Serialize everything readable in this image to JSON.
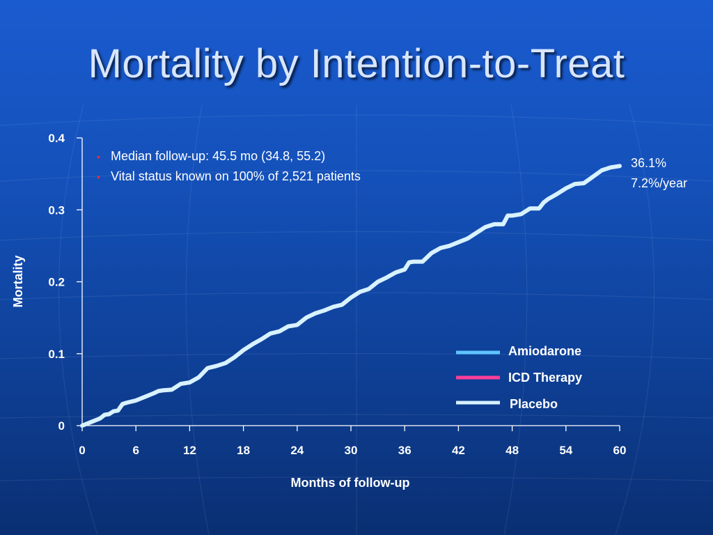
{
  "title": "Mortality by Intention-to-Treat",
  "colors": {
    "amiodarone": "#5ec4ff",
    "icd_therapy": "#ff3d9a",
    "placebo": "#d8f2ff"
  },
  "chart_data": {
    "type": "line",
    "xlabel": "Months of follow-up",
    "ylabel": "Mortality",
    "xlim": [
      0,
      60
    ],
    "ylim": [
      0,
      0.4
    ],
    "x_ticks": [
      "0",
      "6",
      "12",
      "18",
      "24",
      "30",
      "36",
      "42",
      "48",
      "54",
      "60"
    ],
    "y_ticks": [
      "0",
      "0.1",
      "0.2",
      "0.3",
      "0.4"
    ],
    "grid": false,
    "legend_position": "bottom-right",
    "legend": [
      "Amiodarone",
      "ICD Therapy",
      "Placebo"
    ],
    "notes": [
      "Median follow-up:  45.5 mo (34.8, 55.2)",
      "Vital status known on 100% of 2,521 patients"
    ],
    "end_labels": [
      "36.1%",
      "7.2%/year"
    ],
    "series": [
      {
        "name": "Placebo",
        "x": [
          0,
          1,
          2,
          2.5,
          3,
          3.5,
          4,
          4.5,
          5,
          6,
          7,
          8,
          8.5,
          9,
          10,
          11,
          12,
          13,
          14,
          15,
          16,
          17,
          18,
          19,
          20,
          21,
          22,
          23,
          24,
          25,
          26,
          27,
          28,
          29,
          30,
          31,
          32,
          33,
          34,
          35,
          36,
          36.5,
          37,
          38,
          39,
          40,
          41,
          42,
          43,
          44,
          45,
          46,
          47,
          47.5,
          48,
          49,
          50,
          51,
          51.5,
          52,
          53,
          54,
          55,
          56,
          57,
          58,
          59,
          60
        ],
        "y": [
          0,
          0.005,
          0.01,
          0.015,
          0.016,
          0.02,
          0.021,
          0.03,
          0.032,
          0.035,
          0.04,
          0.045,
          0.048,
          0.049,
          0.05,
          0.058,
          0.06,
          0.067,
          0.08,
          0.083,
          0.087,
          0.095,
          0.105,
          0.113,
          0.12,
          0.128,
          0.131,
          0.138,
          0.14,
          0.15,
          0.156,
          0.16,
          0.165,
          0.168,
          0.178,
          0.186,
          0.19,
          0.2,
          0.206,
          0.213,
          0.217,
          0.227,
          0.228,
          0.228,
          0.24,
          0.247,
          0.25,
          0.255,
          0.26,
          0.268,
          0.276,
          0.28,
          0.28,
          0.292,
          0.292,
          0.294,
          0.302,
          0.302,
          0.31,
          0.315,
          0.322,
          0.33,
          0.336,
          0.337,
          0.346,
          0.355,
          0.359,
          0.361
        ]
      }
    ]
  }
}
